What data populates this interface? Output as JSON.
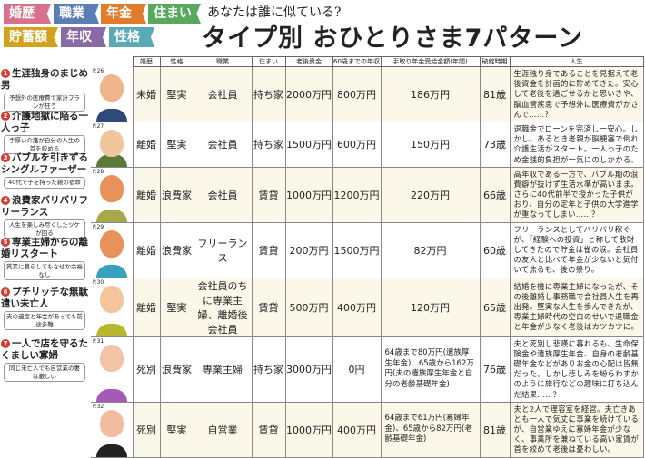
{
  "tags": [
    {
      "label": "婚歴",
      "color": "#d8728c"
    },
    {
      "label": "職業",
      "color": "#5b7db6"
    },
    {
      "label": "年金",
      "color": "#e07c2c"
    },
    {
      "label": "住まい",
      "color": "#58a85e"
    },
    {
      "label": "貯蓄額",
      "color": "#d2a21c"
    },
    {
      "label": "年収",
      "color": "#8a6aa6"
    },
    {
      "label": "性格",
      "color": "#5aaab6"
    }
  ],
  "header": {
    "subtitle": "あなたは誰に似ている?",
    "title": "タイプ別 おひとりさま7パターン"
  },
  "columns": [
    "婚歴",
    "性格",
    "職業",
    "住まい",
    "老後資金",
    "60歳までの年収",
    "手取り年金受給金額(年間)",
    "破綻時期",
    "人生"
  ],
  "rows": [
    {
      "num": "1",
      "title": "生涯独身のまじめ男",
      "sub": "予想外の医療費で家計プランが狂う",
      "page": "P.26",
      "marital": "未婚",
      "personality": "堅実",
      "job": "会社員",
      "housing": "持ち家",
      "savings": "2000万円",
      "income": "800万円",
      "pension": "186万円",
      "collapse": "81歳",
      "life": "生涯独り身であることを見据えて老後資金を計画的に貯めてきた。安心して老後を過ごせるかと思いきや、脳血管疾患で予想外に医療費がかさんで……？"
    },
    {
      "num": "2",
      "title": "介護地獄に陥る一人っ子",
      "sub": "手厚い介護が自分の人生の首を絞める",
      "page": "P.27",
      "marital": "離婚",
      "personality": "堅実",
      "job": "会社員",
      "housing": "持ち家",
      "savings": "1500万円",
      "income": "600万円",
      "pension": "150万円",
      "collapse": "73歳",
      "life": "退職金でローンを完済し一安心。しかし、あるとき老親が脳梗塞で倒れ介護生活がスタート。一人っ子のため金銭的負担が一気にのしかかる。"
    },
    {
      "num": "3",
      "title": "バブルを引きずるシングルファーザー",
      "sub": "40代で子を持った親の宿命",
      "page": "P.28",
      "marital": "離婚",
      "personality": "浪費家",
      "job": "会社員",
      "housing": "賃貸",
      "savings": "1000万円",
      "income": "1200万円",
      "pension": "220万円",
      "collapse": "66歳",
      "life": "高年収である一方で、バブル期の浪費癖が抜けず生活水準が高いまま。さらに40代前半で授かった子供がおり、自分の定年と子供の大学進学が重なってしまい……？"
    },
    {
      "num": "4",
      "title": "浪費家バリバリフリーランス",
      "sub": "人生を楽しみ尽くしたツケが回る",
      "page": "P.29",
      "marital": "離婚",
      "personality": "浪費家",
      "job": "フリーランス",
      "housing": "賃貸",
      "savings": "200万円",
      "income": "1500万円",
      "pension": "82万円",
      "collapse": "60歳",
      "life": "フリーランスとしてバリバリ稼ぐが、「経験への投資」と称して散財してきたので貯金は雀の涙。会社員の友人と比べて年金が少ないと気付いて焦るも、後の祭り。"
    },
    {
      "num": "5",
      "title": "専業主婦からの離婚リスタート",
      "sub": "質素に暮らしてもなぜか余裕なし",
      "page": "P.30",
      "marital": "離婚",
      "personality": "堅実",
      "job": "会社員のちに専業主婦、離婚後会社員",
      "housing": "賃貸",
      "savings": "500万円",
      "income": "400万円",
      "pension": "120万円",
      "collapse": "65歳",
      "life": "結婚を機に専業主婦になったが、その後離婚し事務職で会社員人生を再出発。堅実な人生を歩んできたが、専業主婦時代の空白のせいで退職金と年金が少なく老後はカツカツに。"
    },
    {
      "num": "6",
      "title": "プチリッチな無駄遣い未亡人",
      "sub": "夫の遺産と年金があっても前途多難",
      "page": "P.31",
      "marital": "死別",
      "personality": "浪費家",
      "job": "専業主婦",
      "housing": "持ち家",
      "savings": "3000万円",
      "income": "0円",
      "pension": "64歳まで80万円(遺族厚生年金)、65歳から162万円(夫の遺族厚生年金と自分の老齢基礎年金)",
      "collapse": "76歳",
      "life": "夫と死別し悲嘆に暮れるも、生命保険金や遺族厚生年金、自身の老齢基礎年金などがありお金の心配は皆無だった。しかし悲しみを紛らわすかのように旅行などの趣味に打ち込んだ結果……？"
    },
    {
      "num": "7",
      "title": "一人で店を守るたくましい寡婦",
      "sub": "同じ未亡人でも自営業の妻は厳しい",
      "page": "P.32",
      "marital": "死別",
      "personality": "堅実",
      "job": "自営業",
      "housing": "賃貸",
      "savings": "1000万円",
      "income": "400万円",
      "pension": "64歳まで61万円(寡婦年金)、65歳から82万円(老齢基礎年金)",
      "collapse": "81歳",
      "life": "夫と2人で理容室を経営。夫亡きあとも一人で気丈に事業を続けているが、自営業ゆえに寡婦年金が少なく、事業所を兼ねている高い家賃が首を絞めて老後は憂わしい。"
    }
  ]
}
